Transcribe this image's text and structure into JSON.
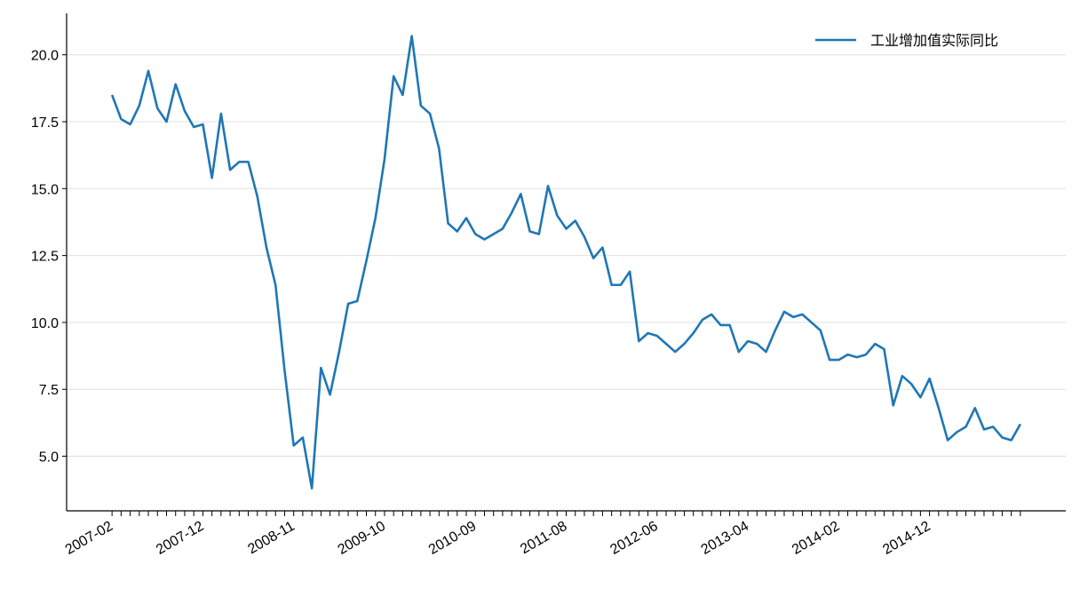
{
  "chart_data": {
    "type": "line",
    "categories": [
      "2007-02",
      null,
      null,
      null,
      null,
      null,
      null,
      null,
      null,
      null,
      "2007-12",
      null,
      null,
      null,
      null,
      null,
      null,
      null,
      null,
      null,
      "2008-11",
      null,
      null,
      null,
      null,
      null,
      null,
      null,
      null,
      null,
      "2009-10",
      null,
      null,
      null,
      null,
      null,
      null,
      null,
      null,
      null,
      "2010-09",
      null,
      null,
      null,
      null,
      null,
      null,
      null,
      null,
      null,
      "2011-08",
      null,
      null,
      null,
      null,
      null,
      null,
      null,
      null,
      null,
      "2012-06",
      null,
      null,
      null,
      null,
      null,
      null,
      null,
      null,
      null,
      "2013-04",
      null,
      null,
      null,
      null,
      null,
      null,
      null,
      null,
      null,
      "2014-02",
      null,
      null,
      null,
      null,
      null,
      null,
      null,
      null,
      null,
      "2014-12",
      null,
      null,
      null,
      null,
      null,
      null,
      null,
      null,
      null,
      null
    ],
    "series": [
      {
        "name": "工业增加值实际同比",
        "color": "#1f77b4",
        "values": [
          18.5,
          17.6,
          17.4,
          18.1,
          19.4,
          18.0,
          17.5,
          18.9,
          17.9,
          17.3,
          17.4,
          15.4,
          17.8,
          15.7,
          16.0,
          16.0,
          14.7,
          12.8,
          11.4,
          8.2,
          5.4,
          5.7,
          3.8,
          8.3,
          7.3,
          8.9,
          10.7,
          10.8,
          12.3,
          13.9,
          16.1,
          19.2,
          18.5,
          20.7,
          18.1,
          17.8,
          16.5,
          13.7,
          13.4,
          13.9,
          13.3,
          13.1,
          13.3,
          13.5,
          14.1,
          14.8,
          13.4,
          13.3,
          15.1,
          14.0,
          13.5,
          13.8,
          13.2,
          12.4,
          12.8,
          11.4,
          11.4,
          11.9,
          9.3,
          9.6,
          9.5,
          9.2,
          8.9,
          9.2,
          9.6,
          10.1,
          10.3,
          9.9,
          9.9,
          8.9,
          9.3,
          9.2,
          8.9,
          9.7,
          10.4,
          10.2,
          10.3,
          10.0,
          9.7,
          8.6,
          8.6,
          8.8,
          8.7,
          8.8,
          9.2,
          9.0,
          6.9,
          8.0,
          7.7,
          7.2,
          7.9,
          6.8,
          5.6,
          5.9,
          6.1,
          6.8,
          6.0,
          6.1,
          5.7,
          5.6,
          6.2
        ]
      }
    ],
    "ylim": [
      2.96,
      21.55
    ],
    "yticks": [
      {
        "value": 5,
        "label": "5.0"
      },
      7.5,
      {
        "value": 10,
        "label": "10.0"
      },
      12.5,
      {
        "value": 15,
        "label": "15.0"
      },
      17.5,
      {
        "value": 20,
        "label": "20.0"
      }
    ],
    "grid": true,
    "legend": "upper right"
  }
}
